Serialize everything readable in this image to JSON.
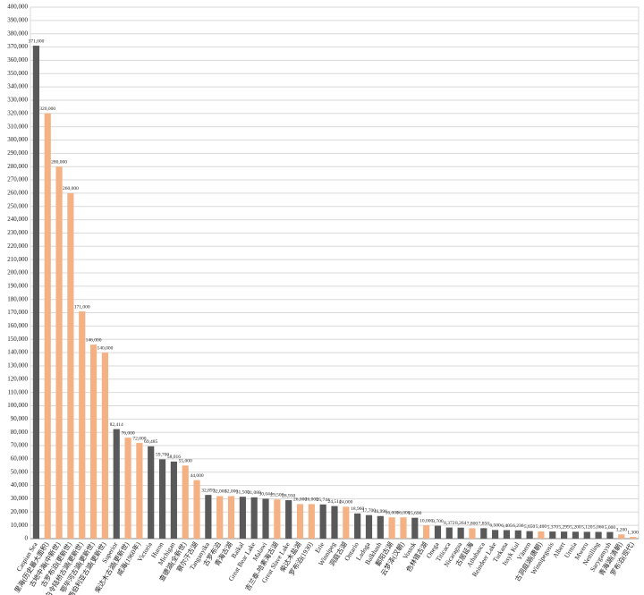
{
  "chart_data": {
    "type": "bar",
    "categories": [
      "Caspian Sea",
      "里海(历史最大面积)",
      "古地中海(中新世)",
      "古罗布泊(更新世)",
      "白令陆桥古湖(更新世)",
      "鄂毕河古湖(更新世)",
      "西伯利亚古湖(更新世)",
      "Superior",
      "柴达木古湖(更新世)",
      "咸海(1960年)",
      "Victoria",
      "Huron",
      "Michigan",
      "查德湖(全新世)",
      "察尔汗古湖",
      "Tanganyika",
      "古罗布泊",
      "青海古湖",
      "Baikal",
      "Great Bear Lake",
      "Malawi",
      "吉兰泰-哈素海古湖",
      "Great Slave Lake",
      "柴达木盐湖",
      "罗布泊(1930)",
      "Erie",
      "Winnipeg",
      "洞庭古湖",
      "Ontario",
      "Ladoga",
      "Balkhash",
      "鄱阳古湖",
      "云梦泽(汉朝)",
      "Vostok",
      "色林错古湖",
      "Onega",
      "Titicaca",
      "Nicaragua",
      "古居延海",
      "Athabasca",
      "Reindeer Lake",
      "Turkana",
      "Issyk Kul",
      "Vänern",
      "古洞庭湖(唐朝)",
      "Winnipegosis",
      "Albert",
      "Urmia",
      "Mweru",
      "Nettilling",
      "Sarygamysh",
      "青海湖(清朝)",
      "罗布泊(现代)"
    ],
    "values": [
      371000,
      320000,
      280000,
      260000,
      171000,
      146000,
      140000,
      82414,
      76000,
      72000,
      69485,
      59700,
      58016,
      55000,
      44000,
      32893,
      32000,
      32000,
      31500,
      31080,
      30044,
      29500,
      28930,
      26000,
      26000,
      25744,
      24514,
      24000,
      18960,
      17700,
      16996,
      16000,
      16000,
      15690,
      10000,
      9700,
      8372,
      8264,
      7800,
      7850,
      6500,
      6405,
      6236,
      5650,
      5400,
      5370,
      5299,
      5200,
      5120,
      5066,
      5000,
      3200,
      1300
    ],
    "value_labels": [
      "371,000",
      "320,000",
      "280,000",
      "260,000",
      "171,000",
      "146,000",
      "140,000",
      "82,414",
      "76,000",
      "72,000",
      "69,485",
      "59,700",
      "58,016",
      "55,000",
      "44,000",
      "32,893",
      "32,000",
      "32,000",
      "31,500",
      "31,080",
      "30,044",
      "29,500",
      "28,930",
      "26,000",
      "26,000",
      "25,744",
      "24,514",
      "24,000",
      "18,960",
      "17,700",
      "16,996",
      "16,000",
      "16,000",
      "15,690",
      "10,000",
      "9,700",
      "8,372",
      "8,264",
      "7,800",
      "7,850",
      "6,500",
      "6,405",
      "6,236",
      "5,650",
      "5,400",
      "5,370",
      "5,299",
      "5,200",
      "5,120",
      "5,066",
      "5,000",
      "3,200",
      "1,300"
    ],
    "colors": [
      "#595959",
      "#f4b183",
      "#f4b183",
      "#f4b183",
      "#f4b183",
      "#f4b183",
      "#f4b183",
      "#595959",
      "#f4b183",
      "#f4b183",
      "#595959",
      "#595959",
      "#595959",
      "#f4b183",
      "#f4b183",
      "#595959",
      "#f4b183",
      "#f4b183",
      "#595959",
      "#595959",
      "#595959",
      "#f4b183",
      "#595959",
      "#f4b183",
      "#f4b183",
      "#595959",
      "#595959",
      "#f4b183",
      "#595959",
      "#595959",
      "#595959",
      "#f4b183",
      "#f4b183",
      "#595959",
      "#f4b183",
      "#595959",
      "#595959",
      "#595959",
      "#f4b183",
      "#595959",
      "#595959",
      "#595959",
      "#595959",
      "#595959",
      "#f4b183",
      "#595959",
      "#595959",
      "#595959",
      "#595959",
      "#595959",
      "#595959",
      "#f4b183",
      "#f4b183"
    ],
    "ylim": [
      0,
      400000
    ],
    "yticks": [
      {
        "value": 0,
        "label": "0"
      },
      {
        "value": 10000,
        "label": "10,000"
      },
      {
        "value": 20000,
        "label": "20,000"
      },
      {
        "value": 30000,
        "label": "30,000"
      },
      {
        "value": 40000,
        "label": "40,000"
      },
      {
        "value": 50000,
        "label": "50,000"
      },
      {
        "value": 60000,
        "label": "60,000"
      },
      {
        "value": 70000,
        "label": "70,000"
      },
      {
        "value": 80000,
        "label": "80,000"
      },
      {
        "value": 90000,
        "label": "90,000"
      },
      {
        "value": 100000,
        "label": "100,000"
      },
      {
        "value": 110000,
        "label": "110,000"
      },
      {
        "value": 120000,
        "label": "120,000"
      },
      {
        "value": 130000,
        "label": "130,000"
      },
      {
        "value": 140000,
        "label": "140,000"
      },
      {
        "value": 150000,
        "label": "150,000"
      },
      {
        "value": 160000,
        "label": "160,000"
      },
      {
        "value": 170000,
        "label": "170,000"
      },
      {
        "value": 180000,
        "label": "180,000"
      },
      {
        "value": 190000,
        "label": "190,000"
      },
      {
        "value": 200000,
        "label": "200,000"
      },
      {
        "value": 210000,
        "label": "210,000"
      },
      {
        "value": 220000,
        "label": "220,000"
      },
      {
        "value": 230000,
        "label": "230,000"
      },
      {
        "value": 240000,
        "label": "240,000"
      },
      {
        "value": 250000,
        "label": "250,000"
      },
      {
        "value": 260000,
        "label": "260,000"
      },
      {
        "value": 270000,
        "label": "270,000"
      },
      {
        "value": 280000,
        "label": "280,000"
      },
      {
        "value": 290000,
        "label": "290,000"
      },
      {
        "value": 300000,
        "label": "300,000"
      },
      {
        "value": 310000,
        "label": "310,000"
      },
      {
        "value": 320000,
        "label": "320,000"
      },
      {
        "value": 330000,
        "label": "330,000"
      },
      {
        "value": 340000,
        "label": "340,000"
      },
      {
        "value": 350000,
        "label": "350,000"
      },
      {
        "value": 360000,
        "label": "360,000"
      },
      {
        "value": 370000,
        "label": "370,000"
      },
      {
        "value": 380000,
        "label": "380,000"
      },
      {
        "value": 390000,
        "label": "390,000"
      },
      {
        "value": 400000,
        "label": "400,000"
      }
    ],
    "grid": true
  }
}
